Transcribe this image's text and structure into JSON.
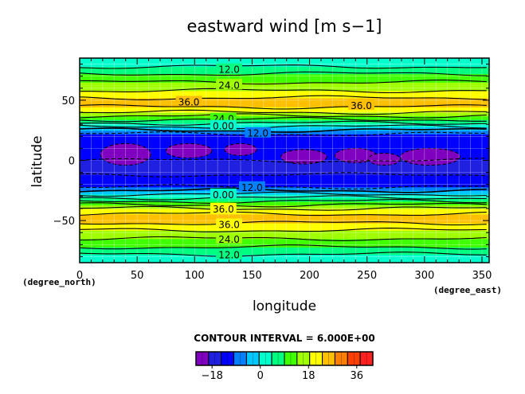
{
  "chart_data": {
    "type": "heatmap",
    "title": "eastward wind [m s−1]",
    "xlabel": "longitude",
    "ylabel": "latitude",
    "x_unit": "(degree_east)",
    "y_unit": "(degree_north)",
    "xlim": [
      0,
      356.25
    ],
    "ylim": [
      -85,
      85
    ],
    "xticks": [
      0,
      50,
      100,
      150,
      200,
      250,
      300,
      350
    ],
    "yticks": [
      -50,
      0,
      50
    ],
    "ytick_labels": [
      "−50",
      "0",
      "50"
    ],
    "grid": true,
    "contour_interval_text": "CONTOUR INTERVAL = 6.000E+00",
    "colorbar": {
      "min": -24,
      "max": 42,
      "step": 6,
      "colors": [
        "#8000c0",
        "#2020e0",
        "#0000ff",
        "#0080ff",
        "#00c8ff",
        "#00ffcc",
        "#00ff80",
        "#40ff00",
        "#a0ff00",
        "#ffff00",
        "#ffc000",
        "#ff8000",
        "#ff4000",
        "#ff2020"
      ],
      "ticks": [
        -18,
        0,
        18,
        36
      ],
      "tick_labels": [
        "−18",
        "0",
        "18",
        "36"
      ]
    },
    "zonal_mean_profile": {
      "latitude": [
        -85,
        -78,
        -72,
        -65,
        -58,
        -52,
        -47,
        -42,
        -37,
        -34,
        -31,
        -28,
        -25,
        -22,
        -18,
        -10,
        0,
        10,
        18,
        22,
        25,
        28,
        31,
        34,
        37,
        42,
        47,
        52,
        58,
        65,
        72,
        78,
        85
      ],
      "wind": [
        6,
        12,
        18,
        24,
        30,
        36,
        38,
        34,
        24,
        18,
        12,
        6,
        0,
        -6,
        -9,
        -13,
        -12,
        -12,
        -9,
        -6,
        0,
        6,
        12,
        18,
        24,
        34,
        38,
        36,
        30,
        24,
        18,
        12,
        6
      ]
    },
    "contour_labels": [
      {
        "text": "12.0",
        "lon": 130,
        "lat": 76
      },
      {
        "text": "24.0",
        "lon": 130,
        "lat": 63
      },
      {
        "text": "36.0",
        "lon": 95,
        "lat": 49
      },
      {
        "text": "36.0",
        "lon": 245,
        "lat": 46
      },
      {
        "text": "24.0",
        "lon": 125,
        "lat": 35
      },
      {
        "text": "0.00",
        "lon": 125,
        "lat": 29
      },
      {
        "text": "12.0",
        "lon": 155,
        "lat": 23
      },
      {
        "text": "12.0",
        "lon": 150,
        "lat": -22
      },
      {
        "text": "0.00",
        "lon": 125,
        "lat": -28
      },
      {
        "text": "36.0",
        "lon": 125,
        "lat": -40
      },
      {
        "text": "36.0",
        "lon": 130,
        "lat": -53
      },
      {
        "text": "24.0",
        "lon": 130,
        "lat": -65
      },
      {
        "text": "12.0",
        "lon": 130,
        "lat": -78
      }
    ]
  }
}
